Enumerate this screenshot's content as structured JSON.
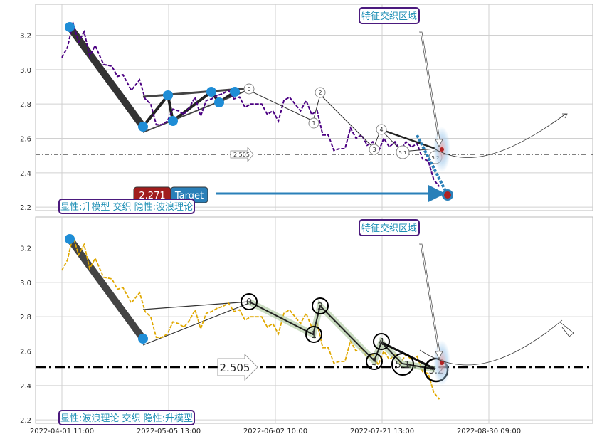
{
  "chart_data": [
    {
      "type": "line",
      "panel": "top",
      "ylim": [
        2.18,
        3.38
      ],
      "yticks": [
        "2.2",
        "2.4",
        "2.6",
        "2.8",
        "3.0",
        "3.2"
      ],
      "hline_value": 2.505,
      "hline_label": "2.505",
      "series_color": "#4b0082",
      "series": [
        {
          "x": [
            0.0,
            0.02,
            0.04,
            0.06,
            0.08,
            0.1,
            0.12,
            0.15,
            0.18,
            0.2,
            0.22,
            0.25,
            0.28,
            0.3,
            0.32,
            0.34,
            0.36,
            0.38,
            0.4,
            0.42,
            0.44,
            0.46,
            0.48,
            0.5,
            0.52,
            0.54,
            0.56,
            0.58,
            0.6,
            0.62,
            0.64,
            0.66,
            0.68,
            0.7,
            0.72,
            0.74,
            0.76,
            0.78,
            0.8,
            0.82,
            0.84,
            0.86,
            0.88,
            0.9,
            0.92,
            0.94,
            0.96,
            0.98,
            1.0,
            1.02,
            1.04,
            1.06,
            1.08,
            1.1,
            1.12,
            1.14,
            1.16,
            1.18,
            1.2,
            1.22,
            1.24,
            1.26,
            1.28,
            1.3,
            1.32,
            1.34,
            1.36
          ],
          "values": [
            3.05,
            3.15,
            3.25,
            3.18,
            3.2,
            3.1,
            3.12,
            3.05,
            3.0,
            2.98,
            2.95,
            2.9,
            2.92,
            2.85,
            2.78,
            2.7,
            2.66,
            2.72,
            2.75,
            2.78,
            2.72,
            2.8,
            2.82,
            2.75,
            2.8,
            2.85,
            2.83,
            2.88,
            2.86,
            2.85,
            2.82,
            2.8,
            2.78,
            2.82,
            2.78,
            2.76,
            2.74,
            2.72,
            2.8,
            2.86,
            2.78,
            2.78,
            2.8,
            2.76,
            2.74,
            2.64,
            2.6,
            2.55,
            2.52,
            2.56,
            2.64,
            2.62,
            2.6,
            2.58,
            2.56,
            2.54,
            2.58,
            2.57,
            2.56,
            2.55,
            2.56,
            2.57,
            2.55,
            2.5,
            2.45,
            2.38,
            2.3
          ]
        }
      ],
      "pivots": [
        {
          "x": 0.02,
          "y": 3.25
        },
        {
          "x": 0.19,
          "y": 2.67
        },
        {
          "x": 0.24,
          "y": 2.85
        },
        {
          "x": 0.26,
          "y": 2.7
        },
        {
          "x": 0.33,
          "y": 2.87
        },
        {
          "x": 0.35,
          "y": 2.81
        },
        {
          "x": 0.38,
          "y": 2.87
        }
      ],
      "wave_labels": [
        {
          "label": "0",
          "x": 0.42,
          "y": 2.89
        },
        {
          "label": "1",
          "x": 0.56,
          "y": 2.69
        },
        {
          "label": "2",
          "x": 0.58,
          "y": 2.86
        },
        {
          "label": "3",
          "x": 0.72,
          "y": 2.53
        },
        {
          "label": "4",
          "x": 0.74,
          "y": 2.65
        },
        {
          "label": "5.1",
          "x": 0.78,
          "y": 2.51
        },
        {
          "label": "5.2",
          "x": 0.86,
          "y": 2.49
        }
      ],
      "target_value": "2.271",
      "target_label": "Target",
      "annotation_top": "特征交织区域",
      "annotation_bottom": "显性:升模型 交织 隐性:波浪理论"
    },
    {
      "type": "line",
      "panel": "bottom",
      "ylim": [
        2.18,
        3.38
      ],
      "yticks": [
        "2.2",
        "2.4",
        "2.6",
        "2.8",
        "3.0",
        "3.2"
      ],
      "hline_value": 2.505,
      "hline_label": "2.505",
      "series_color": "#e0a800",
      "wave_labels": [
        {
          "label": "0",
          "x": 0.42,
          "y": 2.89
        },
        {
          "label": "1",
          "x": 0.56,
          "y": 2.69
        },
        {
          "label": "2",
          "x": 0.58,
          "y": 2.86
        },
        {
          "label": "3",
          "x": 0.72,
          "y": 2.53
        },
        {
          "label": "4",
          "x": 0.74,
          "y": 2.65
        },
        {
          "label": "5.1",
          "x": 0.78,
          "y": 2.51
        },
        {
          "label": "5.2",
          "x": 0.86,
          "y": 2.49
        }
      ],
      "annotation_top": "特征交织区域",
      "annotation_bottom": "显性:波浪理论 交织 隐性:升模型"
    }
  ],
  "x_ticks": [
    "2022-04-01 11:00",
    "2022-05-05 13:00",
    "2022-06-02 10:00",
    "2022-07-21 13:00",
    "2022-08-30 09:00"
  ]
}
